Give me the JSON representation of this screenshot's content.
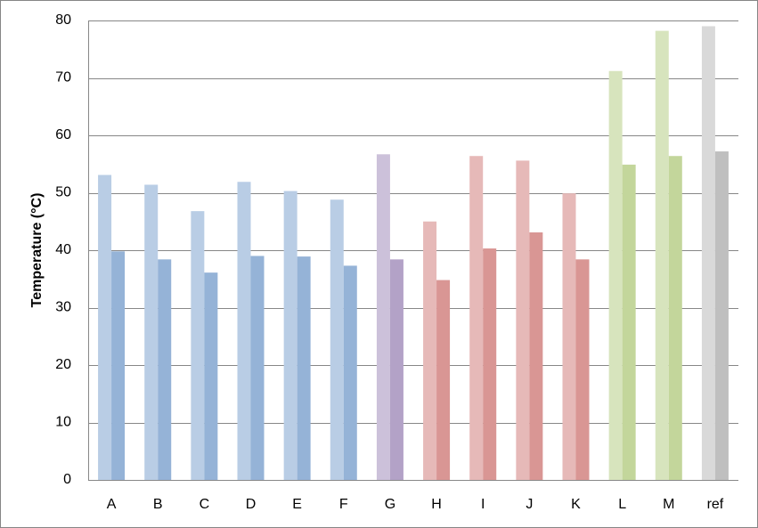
{
  "chart_data": {
    "type": "bar",
    "y_label": "Temperature (°C)",
    "categories": [
      "A",
      "B",
      "C",
      "D",
      "E",
      "F",
      "G",
      "H",
      "I",
      "J",
      "K",
      "L",
      "M",
      "ref"
    ],
    "series": [
      {
        "values": [
          53.1,
          51.4,
          46.8,
          51.9,
          50.3,
          48.8,
          56.7,
          45.0,
          56.4,
          55.6,
          49.9,
          71.2,
          78.2,
          79.0
        ],
        "colors": [
          "#b9cde5",
          "#b9cde5",
          "#b9cde5",
          "#b9cde5",
          "#b9cde5",
          "#b9cde5",
          "#ccc1da",
          "#e6b9b8",
          "#e6b9b8",
          "#e6b9b8",
          "#e6b9b8",
          "#d7e4bd",
          "#d7e4bd",
          "#d9d9d9"
        ]
      },
      {
        "values": [
          39.8,
          38.4,
          36.1,
          39.0,
          38.9,
          37.3,
          38.4,
          34.8,
          40.3,
          43.1,
          38.4,
          54.9,
          56.4,
          57.2
        ],
        "colors": [
          "#95b3d7",
          "#95b3d7",
          "#95b3d7",
          "#95b3d7",
          "#95b3d7",
          "#95b3d7",
          "#b3a2c7",
          "#d99694",
          "#d99694",
          "#d99694",
          "#d99694",
          "#c3d69b",
          "#c3d69b",
          "#bfbfbf"
        ]
      }
    ],
    "ylim": [
      0,
      80
    ],
    "yticks": [
      0,
      10,
      20,
      30,
      40,
      50,
      60,
      70,
      80
    ],
    "grid": true
  }
}
